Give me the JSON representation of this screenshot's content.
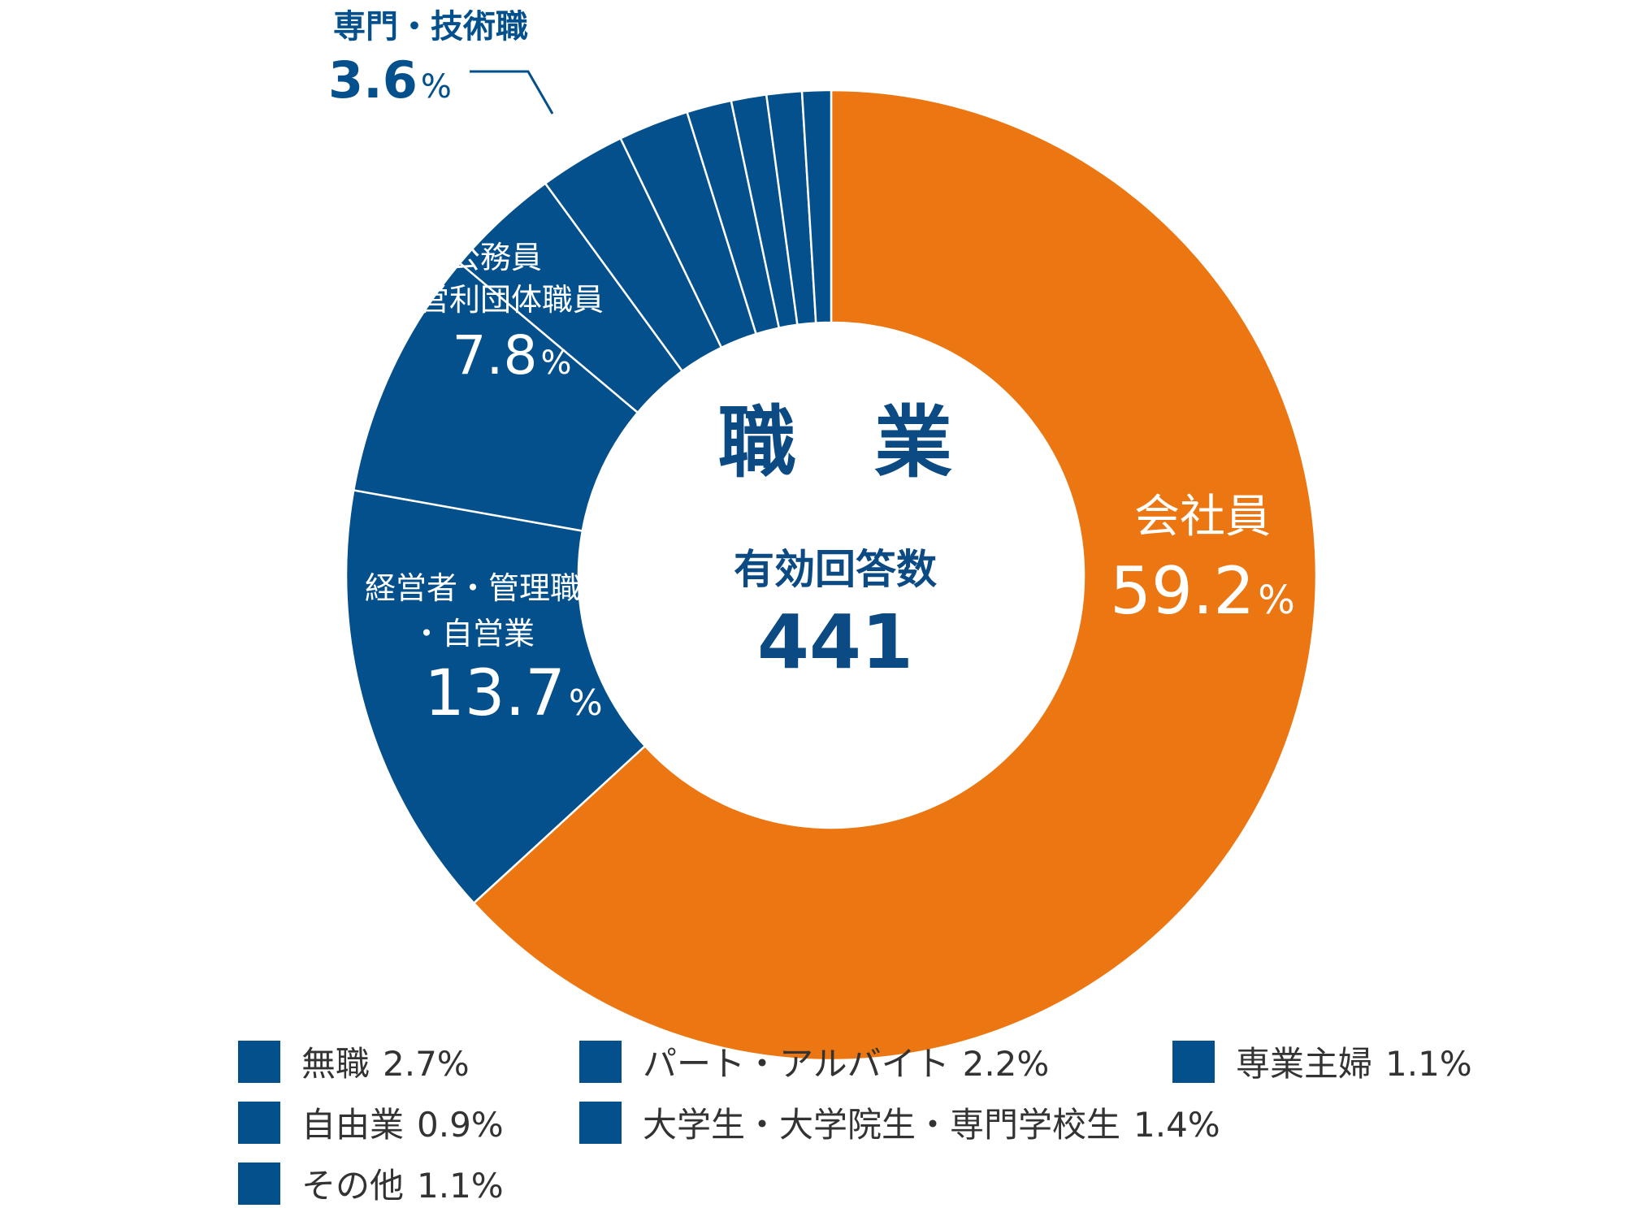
{
  "colors": {
    "orange": "#EC7712",
    "blue": "#03508C",
    "center_text": "#0B4A82",
    "white": "#ffffff"
  },
  "chart_data": {
    "type": "pie",
    "title": "職　業",
    "center_label": "有効回答数",
    "center_value": "441",
    "slices": [
      {
        "label": "会社員",
        "value": 59.2,
        "color": "#EC7712"
      },
      {
        "label": "経営者・管理職・自営業",
        "value": 13.7,
        "color": "#03508C"
      },
      {
        "label": "公務員・非営利団体職員",
        "value": 7.8,
        "color": "#03508C"
      },
      {
        "label": "専門・技術職",
        "value": 3.6,
        "color": "#03508C"
      },
      {
        "label": "無職",
        "value": 2.7,
        "color": "#03508C"
      },
      {
        "label": "パート・アルバイト",
        "value": 2.2,
        "color": "#03508C"
      },
      {
        "label": "大学生・大学院生・専門学校生",
        "value": 1.4,
        "color": "#03508C"
      },
      {
        "label": "専業主婦",
        "value": 1.1,
        "color": "#03508C"
      },
      {
        "label": "その他",
        "value": 1.1,
        "color": "#03508C"
      },
      {
        "label": "自由業",
        "value": 0.9,
        "color": "#03508C"
      }
    ],
    "annotations": {
      "kaishain": {
        "lines": [
          "会社員"
        ],
        "value": "59.2",
        "unit": "%"
      },
      "keiei": {
        "lines": [
          "経営者・管理職",
          "・自営業"
        ],
        "value": "13.7",
        "unit": "%"
      },
      "koumuin": {
        "lines": [
          "公務員",
          "非営利団体職員"
        ],
        "value": "7.8",
        "unit": "%"
      },
      "senmon": {
        "lines": [
          "専門・技術職"
        ],
        "value": "3.6",
        "unit": "%"
      }
    },
    "legend": [
      {
        "label": "無職",
        "value": "2.7%"
      },
      {
        "label": "パート・アルバイト",
        "value": "2.2%"
      },
      {
        "label": "専業主婦",
        "value": "1.1%"
      },
      {
        "label": "自由業",
        "value": "0.9%"
      },
      {
        "label": "大学生・大学院生・専門学校生",
        "value": "1.4%"
      },
      {
        "label": "その他",
        "value": "1.1%"
      }
    ]
  }
}
